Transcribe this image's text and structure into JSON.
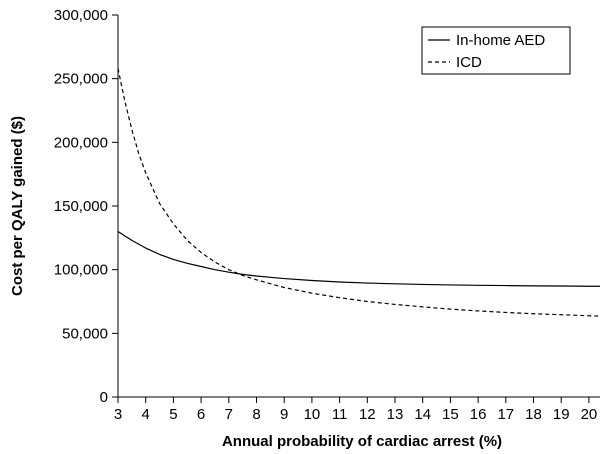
{
  "chart_data": {
    "type": "line",
    "title": "",
    "xlabel": "Annual probability of cardiac arrest (%)",
    "ylabel": "Cost per QALY gained ($)",
    "xlim": [
      3,
      20.4
    ],
    "ylim": [
      0,
      300000
    ],
    "x_ticks": [
      3,
      4,
      5,
      6,
      7,
      8,
      9,
      10,
      11,
      12,
      13,
      14,
      15,
      16,
      17,
      18,
      19,
      20
    ],
    "y_ticks": [
      0,
      50000,
      100000,
      150000,
      200000,
      250000,
      300000
    ],
    "y_tick_labels": [
      "0",
      "50,000",
      "100,000",
      "150,000",
      "200,000",
      "250,000",
      "300,000"
    ],
    "grid": false,
    "legend_position": "top-right",
    "series": [
      {
        "name": "In-home AED",
        "style": "solid",
        "x": [
          3,
          3.5,
          4,
          4.5,
          5,
          5.5,
          6,
          6.5,
          7,
          7.5,
          8,
          8.5,
          9,
          10,
          11,
          12,
          13,
          14,
          15,
          16,
          17,
          18,
          19,
          20,
          20.4
        ],
        "y": [
          130000,
          123000,
          117000,
          112000,
          108000,
          105000,
          102500,
          100000,
          98000,
          96300,
          95000,
          94000,
          93000,
          91500,
          90300,
          89500,
          88900,
          88400,
          88000,
          87700,
          87500,
          87300,
          87200,
          87000,
          87000
        ]
      },
      {
        "name": "ICD",
        "style": "dashed",
        "x": [
          3,
          3.25,
          3.5,
          3.75,
          4,
          4.5,
          5,
          5.5,
          6,
          6.5,
          7,
          7.5,
          8,
          8.5,
          9,
          10,
          11,
          12,
          13,
          14,
          15,
          16,
          17,
          18,
          19,
          20,
          20.4
        ],
        "y": [
          258000,
          232000,
          210000,
          191000,
          176000,
          152000,
          136000,
          123000,
          113500,
          106000,
          100000,
          95500,
          92000,
          89000,
          86000,
          81500,
          78000,
          75000,
          72700,
          70800,
          69000,
          67600,
          66400,
          65400,
          64600,
          63800,
          63500
        ]
      }
    ]
  }
}
